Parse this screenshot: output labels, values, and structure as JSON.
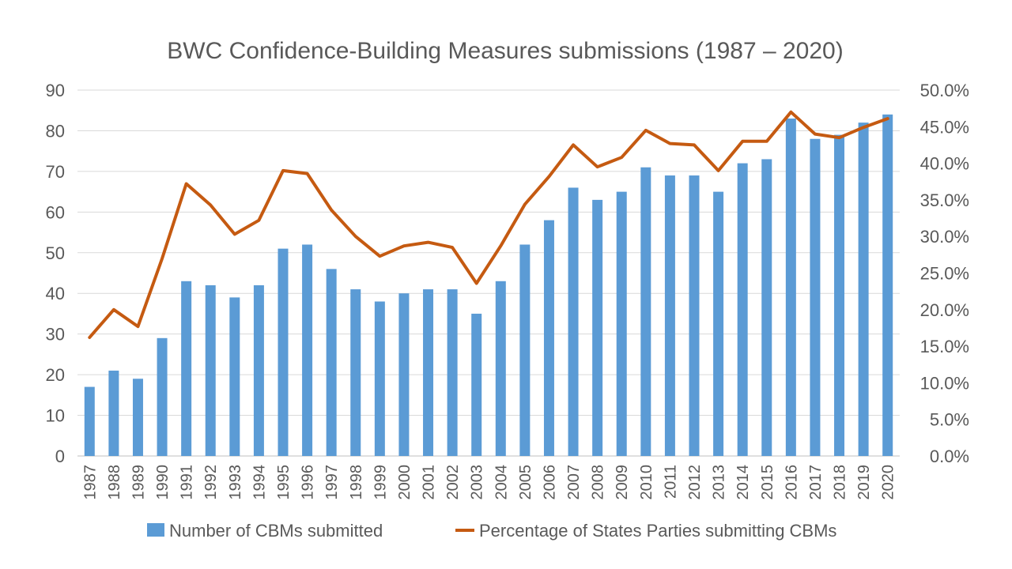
{
  "chart_data": {
    "type": "bar",
    "title": "BWC Confidence-Building Measures submissions (1987 – 2020)",
    "categories": [
      "1987",
      "1988",
      "1989",
      "1990",
      "1991",
      "1992",
      "1993",
      "1994",
      "1995",
      "1996",
      "1997",
      "1998",
      "1999",
      "2000",
      "2001",
      "2002",
      "2003",
      "2004",
      "2005",
      "2006",
      "2007",
      "2008",
      "2009",
      "2010",
      "2011",
      "2012",
      "2013",
      "2014",
      "2015",
      "2016",
      "2017",
      "2018",
      "2019",
      "2020"
    ],
    "series": [
      {
        "name": "Number of CBMs submitted",
        "type": "bar",
        "axis": "left",
        "color": "#5B9BD5",
        "values": [
          17,
          21,
          19,
          29,
          43,
          42,
          39,
          42,
          51,
          52,
          46,
          41,
          38,
          40,
          41,
          41,
          35,
          43,
          52,
          58,
          66,
          63,
          65,
          71,
          69,
          69,
          65,
          72,
          73,
          83,
          78,
          79,
          82,
          84
        ]
      },
      {
        "name": "Percentage of States Parties submitting CBMs",
        "type": "line",
        "axis": "right",
        "color": "#C55A11",
        "values": [
          16.2,
          20.0,
          17.7,
          27.0,
          37.2,
          34.3,
          30.3,
          32.2,
          39.0,
          38.6,
          33.6,
          30.0,
          27.3,
          28.7,
          29.2,
          28.5,
          23.6,
          28.7,
          34.4,
          38.2,
          42.5,
          39.5,
          40.8,
          44.5,
          42.7,
          42.5,
          39.0,
          43.0,
          43.0,
          47.0,
          44.0,
          43.5,
          44.9,
          46.1
        ]
      }
    ],
    "y_left": {
      "min": 0,
      "max": 90,
      "step": 10,
      "ticks": [
        "0",
        "10",
        "20",
        "30",
        "40",
        "50",
        "60",
        "70",
        "80",
        "90"
      ]
    },
    "y_right": {
      "min": 0,
      "max": 50,
      "step": 5,
      "ticks": [
        "0.0%",
        "5.0%",
        "10.0%",
        "15.0%",
        "20.0%",
        "25.0%",
        "30.0%",
        "35.0%",
        "40.0%",
        "45.0%",
        "50.0%"
      ]
    },
    "grid": true,
    "legend_position": "bottom"
  }
}
